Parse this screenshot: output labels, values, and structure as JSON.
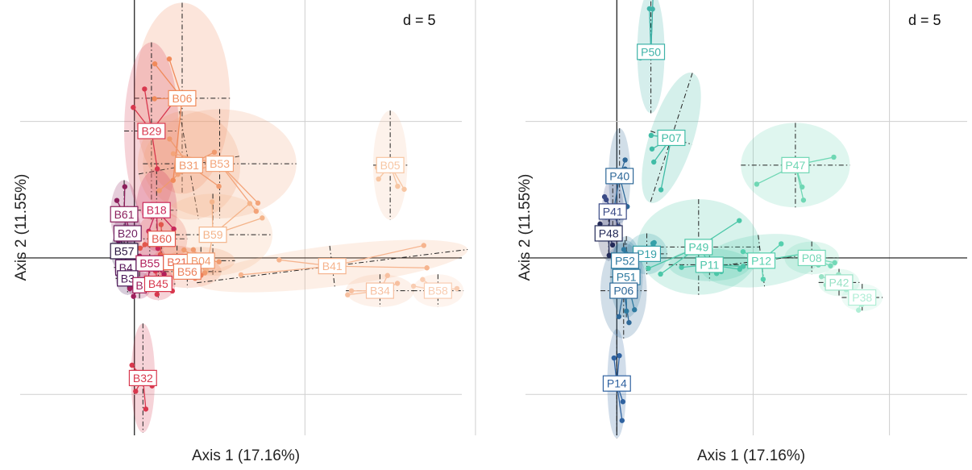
{
  "chart_data": [
    {
      "type": "scatter",
      "title": "",
      "annotation": "d = 5",
      "xlabel": "Axis 1 (17.16%)",
      "ylabel": "Axis 2 (11.55%)",
      "xlim": [
        -6.7,
        19.2
      ],
      "ylim": [
        -13.0,
        18.9
      ],
      "grid_x": [
        0,
        10,
        20
      ],
      "grid_y": [
        -10,
        0,
        10
      ],
      "grid": true,
      "colors": {
        "dark": "#2a1640",
        "mid": "#c8285a",
        "light": "#f4b48a"
      },
      "groups": [
        {
          "label": "B05",
          "color": "#f7c6a3",
          "center": [
            15.0,
            6.8
          ],
          "ellipse": {
            "rx": 1.0,
            "ry": 4.0,
            "rot": 0
          }
        },
        {
          "label": "B06",
          "color": "#f08a5a",
          "center": [
            2.8,
            11.7
          ],
          "ellipse": {
            "rx": 2.8,
            "ry": 7.0,
            "rot": 0
          }
        },
        {
          "label": "B29",
          "color": "#d8384e",
          "center": [
            1.0,
            9.3
          ],
          "ellipse": {
            "rx": 1.6,
            "ry": 6.5,
            "rot": 0
          }
        },
        {
          "label": "B31",
          "color": "#f09a6e",
          "center": [
            3.2,
            6.8
          ],
          "ellipse": {
            "rx": 3.0,
            "ry": 4.0,
            "rot": -10
          }
        },
        {
          "label": "B53",
          "color": "#f3a47a",
          "center": [
            5.0,
            6.9
          ],
          "ellipse": {
            "rx": 4.5,
            "ry": 4.0,
            "rot": 0
          }
        },
        {
          "label": "B18",
          "color": "#c8285a",
          "center": [
            1.3,
            3.5
          ],
          "ellipse": {
            "rx": 1.2,
            "ry": 3.0,
            "rot": 0
          }
        },
        {
          "label": "B61",
          "color": "#8c1f5c",
          "center": [
            -0.6,
            3.2
          ],
          "ellipse": {
            "rx": 0.8,
            "ry": 2.5,
            "rot": 0
          }
        },
        {
          "label": "B20",
          "color": "#6e1e5e",
          "center": [
            -0.4,
            1.8
          ],
          "ellipse": {
            "rx": 0.8,
            "ry": 2.0,
            "rot": 0
          }
        },
        {
          "label": "B60",
          "color": "#e2574c",
          "center": [
            1.6,
            1.4
          ],
          "ellipse": {
            "rx": 1.5,
            "ry": 2.0,
            "rot": 0
          }
        },
        {
          "label": "B59",
          "color": "#f4b48a",
          "center": [
            4.6,
            1.7
          ],
          "ellipse": {
            "rx": 3.5,
            "ry": 3.0,
            "rot": 0
          }
        },
        {
          "label": "B57",
          "color": "#2a1640",
          "center": [
            -0.6,
            0.5
          ],
          "ellipse": {
            "rx": 0.8,
            "ry": 1.5,
            "rot": 0
          }
        },
        {
          "label": "B55",
          "color": "#b01e5a",
          "center": [
            0.9,
            -0.4
          ],
          "ellipse": {
            "rx": 1.0,
            "ry": 1.5,
            "rot": 0
          }
        },
        {
          "label": "B21",
          "color": "#e96a4e",
          "center": [
            2.5,
            -0.3
          ],
          "ellipse": {
            "rx": 1.5,
            "ry": 1.2,
            "rot": 0
          }
        },
        {
          "label": "B04",
          "color": "#f09a6e",
          "center": [
            3.9,
            -0.2
          ],
          "ellipse": {
            "rx": 2.0,
            "ry": 1.0,
            "rot": 0
          }
        },
        {
          "label": "B56",
          "color": "#ec7f5a",
          "center": [
            3.1,
            -1.0
          ],
          "ellipse": {
            "rx": 2.0,
            "ry": 1.2,
            "rot": 0
          }
        },
        {
          "label": "B4",
          "color": "#5a1a5c",
          "center": [
            -0.5,
            -0.7
          ],
          "ellipse": {
            "rx": 0.7,
            "ry": 1.2,
            "rot": 0
          }
        },
        {
          "label": "B3",
          "color": "#4a1858",
          "center": [
            -0.4,
            -1.5
          ],
          "ellipse": {
            "rx": 0.7,
            "ry": 1.2,
            "rot": 0
          }
        },
        {
          "label": "B",
          "color": "#a01f5c",
          "center": [
            0.3,
            -2.0
          ],
          "ellipse": {
            "rx": 0.7,
            "ry": 1.0,
            "rot": 0
          }
        },
        {
          "label": "B45",
          "color": "#d8384e",
          "center": [
            1.4,
            -1.9
          ],
          "ellipse": {
            "rx": 1.0,
            "ry": 1.2,
            "rot": 0
          }
        },
        {
          "label": "B32",
          "color": "#d8384e",
          "center": [
            0.5,
            -8.8
          ],
          "ellipse": {
            "rx": 0.7,
            "ry": 4.0,
            "rot": 0
          }
        },
        {
          "label": "B41",
          "color": "#f6b48e",
          "center": [
            11.6,
            -0.6
          ],
          "ellipse": {
            "rx": 8.0,
            "ry": 1.5,
            "rot": -7
          }
        },
        {
          "label": "B34",
          "color": "#f7c0a0",
          "center": [
            14.4,
            -2.4
          ],
          "ellipse": {
            "rx": 2.0,
            "ry": 1.2,
            "rot": 0
          }
        },
        {
          "label": "B58",
          "color": "#f9cdb2",
          "center": [
            17.8,
            -2.4
          ],
          "ellipse": {
            "rx": 1.5,
            "ry": 1.2,
            "rot": 0
          }
        }
      ]
    },
    {
      "type": "scatter",
      "title": "",
      "annotation": "d = 5",
      "xlabel": "Axis 1 (17.16%)",
      "ylabel": "Axis 2 (11.55%)",
      "xlim": [
        -6.7,
        25.7
      ],
      "ylim": [
        -13.0,
        18.9
      ],
      "grid_x": [
        0,
        10,
        20
      ],
      "grid_y": [
        -10,
        0,
        10
      ],
      "grid": true,
      "colors": {
        "dark": "#1e2a52",
        "mid": "#2f72a0",
        "light": "#7fdcb8"
      },
      "groups": [
        {
          "label": "P50",
          "color": "#3fb3a8",
          "center": [
            2.5,
            15.1
          ],
          "ellipse": {
            "rx": 1.0,
            "ry": 4.5,
            "rot": 0
          }
        },
        {
          "label": "P07",
          "color": "#40bca6",
          "center": [
            4.0,
            8.8
          ],
          "ellipse": {
            "rx": 1.6,
            "ry": 5.0,
            "rot": 18
          }
        },
        {
          "label": "P47",
          "color": "#6fd7b4",
          "center": [
            13.1,
            6.8
          ],
          "ellipse": {
            "rx": 4.0,
            "ry": 3.1,
            "rot": 0
          }
        },
        {
          "label": "P40",
          "color": "#2e6898",
          "center": [
            0.2,
            6.0
          ],
          "ellipse": {
            "rx": 0.8,
            "ry": 3.5,
            "rot": 0
          }
        },
        {
          "label": "P41",
          "color": "#3a4a86",
          "center": [
            -0.3,
            3.4
          ],
          "ellipse": {
            "rx": 0.8,
            "ry": 2.5,
            "rot": 0
          }
        },
        {
          "label": "P48",
          "color": "#232a58",
          "center": [
            -0.6,
            1.8
          ],
          "ellipse": {
            "rx": 0.8,
            "ry": 2.0,
            "rot": 0
          }
        },
        {
          "label": "P49",
          "color": "#4cc7a8",
          "center": [
            6.0,
            0.8
          ],
          "ellipse": {
            "rx": 4.5,
            "ry": 3.5,
            "rot": 0
          }
        },
        {
          "label": "P19",
          "color": "#35a0a8",
          "center": [
            2.2,
            0.3
          ],
          "ellipse": {
            "rx": 1.5,
            "ry": 1.5,
            "rot": 0
          }
        },
        {
          "label": "P52",
          "color": "#2e7aa0",
          "center": [
            0.6,
            -0.2
          ],
          "ellipse": {
            "rx": 1.0,
            "ry": 1.5,
            "rot": 0
          }
        },
        {
          "label": "P11",
          "color": "#49c4a8",
          "center": [
            6.8,
            -0.5
          ],
          "ellipse": {
            "rx": 3.0,
            "ry": 1.2,
            "rot": 0
          }
        },
        {
          "label": "P12",
          "color": "#55cfae",
          "center": [
            10.6,
            -0.2
          ],
          "ellipse": {
            "rx": 4.5,
            "ry": 1.9,
            "rot": -7
          }
        },
        {
          "label": "P08",
          "color": "#75d9b8",
          "center": [
            14.3,
            0.0
          ],
          "ellipse": {
            "rx": 2.0,
            "ry": 1.2,
            "rot": 0
          }
        },
        {
          "label": "P51",
          "color": "#2e7aa0",
          "center": [
            0.7,
            -1.4
          ],
          "ellipse": {
            "rx": 1.2,
            "ry": 3.0,
            "rot": 0
          }
        },
        {
          "label": "P06",
          "color": "#2e6898",
          "center": [
            0.5,
            -2.4
          ],
          "ellipse": {
            "rx": 1.7,
            "ry": 3.5,
            "rot": 0
          }
        },
        {
          "label": "P42",
          "color": "#98e2c6",
          "center": [
            16.3,
            -1.8
          ],
          "ellipse": {
            "rx": 1.5,
            "ry": 1.0,
            "rot": 0
          }
        },
        {
          "label": "P38",
          "color": "#b0eed6",
          "center": [
            18.0,
            -2.9
          ],
          "ellipse": {
            "rx": 1.5,
            "ry": 1.0,
            "rot": 0
          }
        },
        {
          "label": "P14",
          "color": "#2f62a0",
          "center": [
            0.0,
            -9.2
          ],
          "ellipse": {
            "rx": 0.7,
            "ry": 4.0,
            "rot": 0
          }
        }
      ]
    }
  ]
}
